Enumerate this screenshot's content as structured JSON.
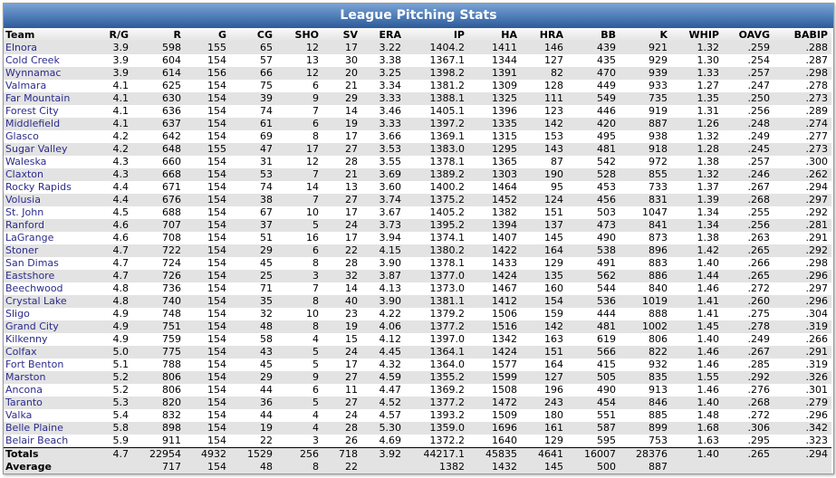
{
  "title": "League Pitching Stats",
  "columns": [
    "Team",
    "R/G",
    "R",
    "G",
    "CG",
    "SHO",
    "SV",
    "ERA",
    "IP",
    "HA",
    "HRA",
    "BB",
    "K",
    "WHIP",
    "OAVG",
    "BABIP"
  ],
  "rows": [
    [
      "Elnora",
      "3.9",
      "598",
      "155",
      "65",
      "12",
      "17",
      "3.22",
      "1404.2",
      "1411",
      "146",
      "439",
      "921",
      "1.32",
      ".259",
      ".288"
    ],
    [
      "Cold Creek",
      "3.9",
      "604",
      "154",
      "57",
      "13",
      "30",
      "3.38",
      "1367.1",
      "1344",
      "127",
      "435",
      "929",
      "1.30",
      ".254",
      ".287"
    ],
    [
      "Wynnamac",
      "3.9",
      "614",
      "156",
      "66",
      "12",
      "20",
      "3.25",
      "1398.2",
      "1391",
      "82",
      "470",
      "939",
      "1.33",
      ".257",
      ".298"
    ],
    [
      "Valmara",
      "4.1",
      "625",
      "154",
      "75",
      "6",
      "21",
      "3.34",
      "1381.2",
      "1309",
      "128",
      "449",
      "933",
      "1.27",
      ".247",
      ".278"
    ],
    [
      "Far Mountain",
      "4.1",
      "630",
      "154",
      "39",
      "9",
      "29",
      "3.33",
      "1388.1",
      "1325",
      "111",
      "549",
      "735",
      "1.35",
      ".250",
      ".273"
    ],
    [
      "Forest City",
      "4.1",
      "636",
      "154",
      "74",
      "7",
      "14",
      "3.46",
      "1405.1",
      "1396",
      "123",
      "446",
      "919",
      "1.31",
      ".256",
      ".289"
    ],
    [
      "Middlefield",
      "4.1",
      "637",
      "154",
      "61",
      "6",
      "19",
      "3.33",
      "1397.2",
      "1335",
      "142",
      "420",
      "887",
      "1.26",
      ".248",
      ".274"
    ],
    [
      "Glasco",
      "4.2",
      "642",
      "154",
      "69",
      "8",
      "17",
      "3.66",
      "1369.1",
      "1315",
      "153",
      "495",
      "938",
      "1.32",
      ".249",
      ".277"
    ],
    [
      "Sugar Valley",
      "4.2",
      "648",
      "155",
      "47",
      "17",
      "27",
      "3.53",
      "1383.0",
      "1295",
      "143",
      "481",
      "918",
      "1.28",
      ".245",
      ".273"
    ],
    [
      "Waleska",
      "4.3",
      "660",
      "154",
      "31",
      "12",
      "28",
      "3.55",
      "1378.1",
      "1365",
      "87",
      "542",
      "972",
      "1.38",
      ".257",
      ".300"
    ],
    [
      "Claxton",
      "4.3",
      "668",
      "154",
      "53",
      "7",
      "21",
      "3.69",
      "1389.2",
      "1303",
      "190",
      "528",
      "855",
      "1.32",
      ".246",
      ".262"
    ],
    [
      "Rocky Rapids",
      "4.4",
      "671",
      "154",
      "74",
      "14",
      "13",
      "3.60",
      "1400.2",
      "1464",
      "95",
      "453",
      "733",
      "1.37",
      ".267",
      ".294"
    ],
    [
      "Volusia",
      "4.4",
      "676",
      "154",
      "38",
      "7",
      "27",
      "3.74",
      "1375.2",
      "1452",
      "124",
      "456",
      "831",
      "1.39",
      ".268",
      ".297"
    ],
    [
      "St. John",
      "4.5",
      "688",
      "154",
      "67",
      "10",
      "17",
      "3.67",
      "1405.2",
      "1382",
      "151",
      "503",
      "1047",
      "1.34",
      ".255",
      ".292"
    ],
    [
      "Ranford",
      "4.6",
      "707",
      "154",
      "37",
      "5",
      "24",
      "3.73",
      "1395.2",
      "1394",
      "137",
      "473",
      "841",
      "1.34",
      ".256",
      ".281"
    ],
    [
      "LaGrange",
      "4.6",
      "708",
      "154",
      "51",
      "16",
      "17",
      "3.94",
      "1374.1",
      "1407",
      "145",
      "490",
      "873",
      "1.38",
      ".263",
      ".291"
    ],
    [
      "Stoner",
      "4.7",
      "722",
      "154",
      "29",
      "6",
      "22",
      "4.15",
      "1380.2",
      "1422",
      "164",
      "538",
      "896",
      "1.42",
      ".265",
      ".292"
    ],
    [
      "San Dimas",
      "4.7",
      "724",
      "154",
      "45",
      "8",
      "28",
      "3.90",
      "1378.1",
      "1433",
      "129",
      "491",
      "883",
      "1.40",
      ".266",
      ".298"
    ],
    [
      "Eastshore",
      "4.7",
      "726",
      "154",
      "25",
      "3",
      "32",
      "3.87",
      "1377.0",
      "1424",
      "135",
      "562",
      "886",
      "1.44",
      ".265",
      ".296"
    ],
    [
      "Beechwood",
      "4.8",
      "736",
      "154",
      "71",
      "7",
      "14",
      "4.13",
      "1373.0",
      "1467",
      "160",
      "544",
      "840",
      "1.46",
      ".272",
      ".297"
    ],
    [
      "Crystal Lake",
      "4.8",
      "740",
      "154",
      "35",
      "8",
      "40",
      "3.90",
      "1381.1",
      "1412",
      "154",
      "536",
      "1019",
      "1.41",
      ".260",
      ".296"
    ],
    [
      "Sligo",
      "4.9",
      "748",
      "154",
      "32",
      "10",
      "23",
      "4.22",
      "1379.2",
      "1506",
      "159",
      "444",
      "888",
      "1.41",
      ".275",
      ".304"
    ],
    [
      "Grand City",
      "4.9",
      "751",
      "154",
      "48",
      "8",
      "19",
      "4.06",
      "1377.2",
      "1516",
      "142",
      "481",
      "1002",
      "1.45",
      ".278",
      ".319"
    ],
    [
      "Kilkenny",
      "4.9",
      "759",
      "154",
      "58",
      "4",
      "15",
      "4.12",
      "1397.0",
      "1342",
      "163",
      "619",
      "806",
      "1.40",
      ".249",
      ".266"
    ],
    [
      "Colfax",
      "5.0",
      "775",
      "154",
      "43",
      "5",
      "24",
      "4.45",
      "1364.1",
      "1424",
      "151",
      "566",
      "822",
      "1.46",
      ".267",
      ".291"
    ],
    [
      "Fort Benton",
      "5.1",
      "788",
      "154",
      "45",
      "5",
      "17",
      "4.32",
      "1364.0",
      "1577",
      "164",
      "415",
      "932",
      "1.46",
      ".285",
      ".319"
    ],
    [
      "Marston",
      "5.2",
      "806",
      "154",
      "29",
      "9",
      "27",
      "4.59",
      "1355.2",
      "1599",
      "127",
      "505",
      "835",
      "1.55",
      ".292",
      ".326"
    ],
    [
      "Ancona",
      "5.2",
      "806",
      "154",
      "44",
      "6",
      "11",
      "4.47",
      "1369.2",
      "1508",
      "196",
      "490",
      "913",
      "1.46",
      ".276",
      ".301"
    ],
    [
      "Taranto",
      "5.3",
      "820",
      "154",
      "36",
      "5",
      "27",
      "4.52",
      "1377.2",
      "1472",
      "243",
      "454",
      "846",
      "1.40",
      ".268",
      ".279"
    ],
    [
      "Valka",
      "5.4",
      "832",
      "154",
      "44",
      "4",
      "24",
      "4.57",
      "1393.2",
      "1509",
      "180",
      "551",
      "885",
      "1.48",
      ".272",
      ".296"
    ],
    [
      "Belle Plaine",
      "5.8",
      "898",
      "154",
      "19",
      "4",
      "28",
      "5.30",
      "1359.0",
      "1696",
      "161",
      "587",
      "899",
      "1.68",
      ".306",
      ".342"
    ],
    [
      "Belair Beach",
      "5.9",
      "911",
      "154",
      "22",
      "3",
      "26",
      "4.69",
      "1372.2",
      "1640",
      "129",
      "595",
      "753",
      "1.63",
      ".295",
      ".323"
    ]
  ],
  "totals": [
    "Totals",
    "4.7",
    "22954",
    "4932",
    "1529",
    "256",
    "718",
    "3.92",
    "44217.1",
    "45835",
    "4641",
    "16007",
    "28376",
    "1.40",
    ".265",
    ".294"
  ],
  "average": [
    "Average",
    "",
    "717",
    "154",
    "48",
    "8",
    "22",
    "",
    "1382",
    "1432",
    "145",
    "500",
    "887",
    "",
    "",
    ""
  ],
  "colors": {
    "title_bar": "#4d7bb6",
    "team_link": "#2b2b8c",
    "row_alt": "#e3e3e3"
  }
}
